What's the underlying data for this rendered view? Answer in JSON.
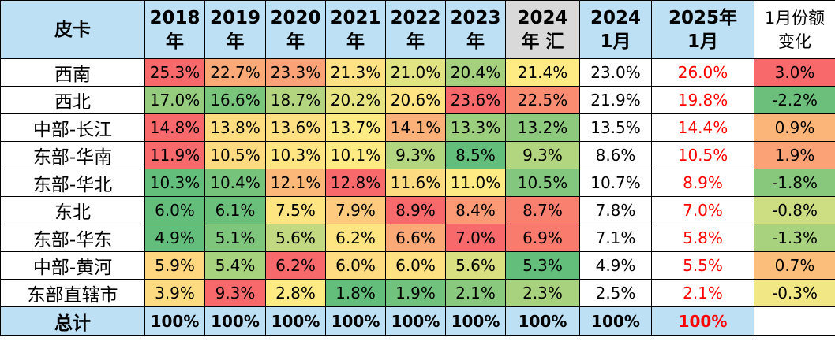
{
  "header": {
    "corner": "皮卡",
    "years": [
      {
        "top": "2018",
        "bottom": "年"
      },
      {
        "top": "2019",
        "bottom": "年"
      },
      {
        "top": "2020",
        "bottom": "年"
      },
      {
        "top": "2021",
        "bottom": "年"
      },
      {
        "top": "2022",
        "bottom": "年"
      },
      {
        "top": "2023",
        "bottom": "年"
      },
      {
        "top": "2024",
        "bottom": "年 汇"
      },
      {
        "top": "2024",
        "bottom": "1月"
      },
      {
        "top": "2025年",
        "bottom": "1月"
      }
    ],
    "change": {
      "top": "1月份额",
      "bottom": "变化"
    }
  },
  "rows": [
    {
      "region": "西南",
      "values": [
        "25.3%",
        "22.7%",
        "23.3%",
        "21.3%",
        "21.0%",
        "20.4%",
        "21.4%",
        "23.0%",
        "26.0%"
      ],
      "change": "3.0%",
      "colors": [
        "#f8696b",
        "#fbaa77",
        "#fba276",
        "#ffe283",
        "#e2e383",
        "#a5d17f",
        "#ffeb84",
        "#ffffff",
        "#ffffff"
      ],
      "change_color": "#f8696b"
    },
    {
      "region": "西北",
      "values": [
        "17.0%",
        "16.6%",
        "18.7%",
        "20.2%",
        "20.6%",
        "23.6%",
        "22.5%",
        "21.9%",
        "19.8%"
      ],
      "change": "-2.2%",
      "colors": [
        "#95cc7e",
        "#7ac57c",
        "#b3d580",
        "#e7e483",
        "#fee482",
        "#f8696b",
        "#fa8c72",
        "#ffffff",
        "#ffffff"
      ],
      "change_color": "#6bbf7b"
    },
    {
      "region": "中部-长江",
      "values": [
        "14.8%",
        "13.8%",
        "13.6%",
        "13.7%",
        "14.1%",
        "13.3%",
        "13.2%",
        "13.5%",
        "14.4%"
      ],
      "change": "0.9%",
      "colors": [
        "#f8696b",
        "#fedd81",
        "#ffe082",
        "#ffeb84",
        "#fbb178",
        "#9bcf7e",
        "#8dca7d",
        "#ffffff",
        "#ffffff"
      ],
      "change_color": "#fbb579"
    },
    {
      "region": "东部-华南",
      "values": [
        "11.9%",
        "10.5%",
        "10.3%",
        "10.1%",
        "9.3%",
        "8.5%",
        "9.3%",
        "8.6%",
        "10.5%"
      ],
      "change": "1.9%",
      "colors": [
        "#f8696b",
        "#fedb81",
        "#ffe683",
        "#ffeb84",
        "#b2d580",
        "#63be7b",
        "#b2d580",
        "#ffffff",
        "#ffffff"
      ],
      "change_color": "#fba276"
    },
    {
      "region": "东部-华北",
      "values": [
        "10.3%",
        "10.4%",
        "12.1%",
        "12.8%",
        "11.6%",
        "11.0%",
        "10.5%",
        "10.7%",
        "8.9%"
      ],
      "change": "-1.8%",
      "colors": [
        "#63be7b",
        "#76c37c",
        "#fcb879",
        "#f8696b",
        "#fddc81",
        "#ffeb84",
        "#82c77d",
        "#ffffff",
        "#ffffff"
      ],
      "change_color": "#87c87d"
    },
    {
      "region": "东北",
      "values": [
        "6.0%",
        "6.1%",
        "7.5%",
        "7.9%",
        "8.9%",
        "8.4%",
        "8.7%",
        "7.8%",
        "7.0%"
      ],
      "change": "-0.8%",
      "colors": [
        "#63be7b",
        "#6ac07b",
        "#ffe582",
        "#fecb7e",
        "#f8696b",
        "#fb9a74",
        "#f97f6f",
        "#ffffff",
        "#ffffff"
      ],
      "change_color": "#ccdd82"
    },
    {
      "region": "东部-华东",
      "values": [
        "4.9%",
        "5.1%",
        "5.6%",
        "6.2%",
        "6.6%",
        "7.0%",
        "6.9%",
        "7.1%",
        "5.8%"
      ],
      "change": "-1.3%",
      "colors": [
        "#63be7b",
        "#7fc67d",
        "#c3d981",
        "#fee582",
        "#fbaa77",
        "#f8696b",
        "#f97b6e",
        "#ffffff",
        "#ffffff"
      ],
      "change_color": "#a9d27f"
    },
    {
      "region": "中部-黄河",
      "values": [
        "5.9%",
        "5.4%",
        "6.2%",
        "6.0%",
        "6.0%",
        "5.6%",
        "5.3%",
        "4.9%",
        "5.5%"
      ],
      "change": "0.7%",
      "colors": [
        "#fed780",
        "#a7d37f",
        "#f8696b",
        "#fedc81",
        "#fee182",
        "#d8e082",
        "#63be7b",
        "#ffffff",
        "#ffffff"
      ],
      "change_color": "#fcbf7b"
    },
    {
      "region": "东部直辖市",
      "values": [
        "3.9%",
        "9.3%",
        "2.8%",
        "1.8%",
        "1.9%",
        "2.1%",
        "2.3%",
        "2.5%",
        "2.1%"
      ],
      "change": "-0.3%",
      "colors": [
        "#fddb81",
        "#f8696b",
        "#feeb84",
        "#63be7b",
        "#71c27c",
        "#89c97d",
        "#a9d27f",
        "#ffffff",
        "#ffffff"
      ],
      "change_color": "#f1e784"
    }
  ],
  "total": {
    "label": "总计",
    "values": [
      "100%",
      "100%",
      "100%",
      "100%",
      "100%",
      "100%",
      "100%",
      "100%",
      "100%"
    ],
    "change": ""
  }
}
